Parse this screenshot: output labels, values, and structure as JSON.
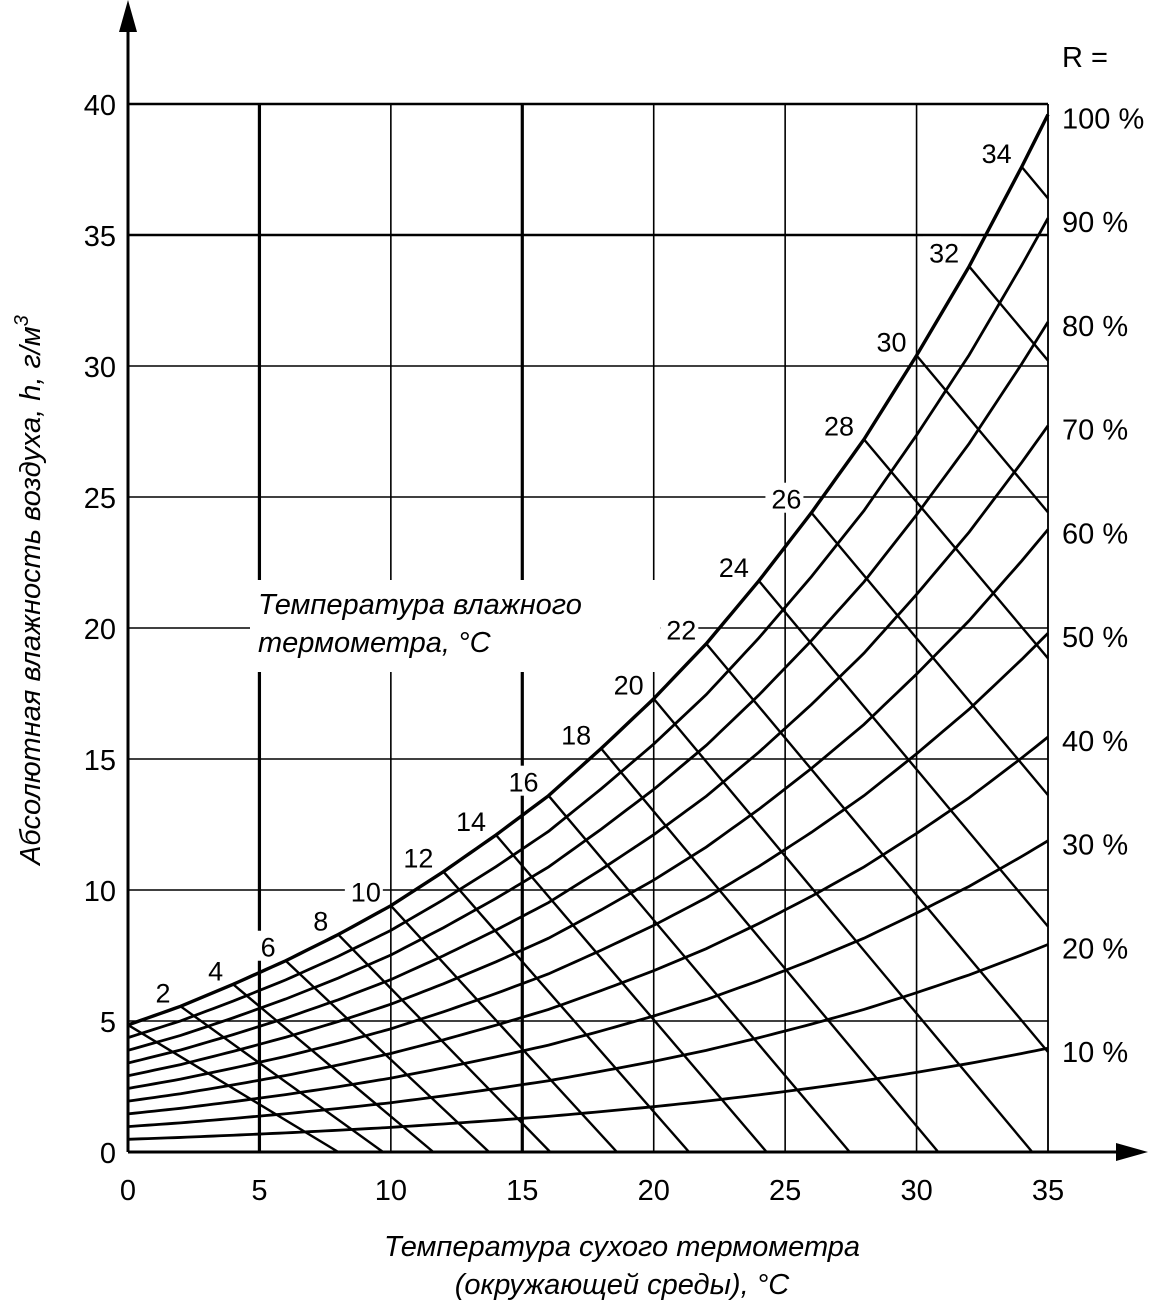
{
  "chart_data": {
    "type": "line",
    "xlabel_lines": [
      "Температура сухого термометра",
      "(окружающей среды), °C"
    ],
    "ylabel": "Абсолютная влажность воздуха, h, г/м",
    "ylabel_sup": "3",
    "annotation_lines": [
      "Температура влажного",
      "термометра, °C"
    ],
    "r_header": "R =",
    "xlim": [
      0,
      35
    ],
    "ylim": [
      0,
      40
    ],
    "x_ticks": [
      0,
      5,
      10,
      15,
      20,
      25,
      30,
      35
    ],
    "y_ticks": [
      0,
      5,
      10,
      15,
      20,
      25,
      30,
      35,
      40
    ],
    "x_tick_labels": [
      "0",
      "5",
      "10",
      "15",
      "20",
      "25",
      "30",
      "35"
    ],
    "y_tick_labels": [
      "0",
      "5",
      "10",
      "15",
      "20",
      "25",
      "30",
      "35",
      "40"
    ],
    "grid": true,
    "saturation_curve": {
      "x": [
        0,
        2,
        4,
        6,
        8,
        10,
        12,
        14,
        16,
        18,
        20,
        22,
        24,
        26,
        28,
        30,
        32,
        34,
        35
      ],
      "y": [
        4.85,
        5.56,
        6.4,
        7.3,
        8.3,
        9.4,
        10.7,
        12.1,
        13.6,
        15.4,
        17.3,
        19.4,
        21.8,
        24.4,
        27.2,
        30.4,
        33.8,
        37.6,
        39.6
      ]
    },
    "relative_humidity_lines": [
      {
        "label": "100 %",
        "value": 100
      },
      {
        "label": "90 %",
        "value": 90
      },
      {
        "label": "80 %",
        "value": 80
      },
      {
        "label": "70 %",
        "value": 70
      },
      {
        "label": "60 %",
        "value": 60
      },
      {
        "label": "50 %",
        "value": 50
      },
      {
        "label": "40 %",
        "value": 40
      },
      {
        "label": "30 %",
        "value": 30
      },
      {
        "label": "20 %",
        "value": 20
      },
      {
        "label": "10 %",
        "value": 10
      }
    ],
    "wet_bulb_lines": [
      {
        "label": "2",
        "t": 2
      },
      {
        "label": "4",
        "t": 4
      },
      {
        "label": "6",
        "t": 6
      },
      {
        "label": "8",
        "t": 8
      },
      {
        "label": "10",
        "t": 10
      },
      {
        "label": "12",
        "t": 12
      },
      {
        "label": "14",
        "t": 14
      },
      {
        "label": "16",
        "t": 16
      },
      {
        "label": "18",
        "t": 18
      },
      {
        "label": "20",
        "t": 20
      },
      {
        "label": "22",
        "t": 22
      },
      {
        "label": "24",
        "t": 24
      },
      {
        "label": "26",
        "t": 26
      },
      {
        "label": "28",
        "t": 28
      },
      {
        "label": "30",
        "t": 30
      },
      {
        "label": "32",
        "t": 32
      },
      {
        "label": "34",
        "t": 34
      }
    ]
  }
}
